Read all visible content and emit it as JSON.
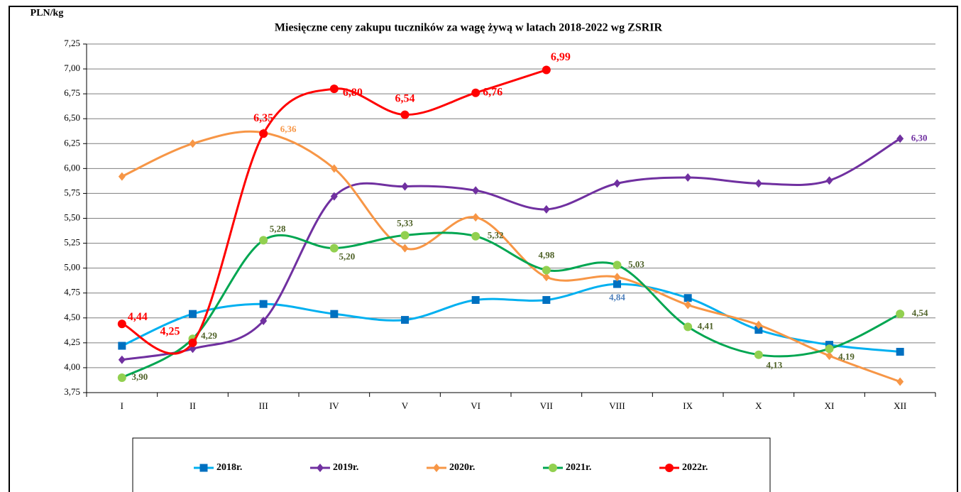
{
  "chart_data": {
    "type": "line",
    "title": "Miesięczne ceny zakupu tuczników za wagę żywą w latach 2018-2022 wg ZSRIR",
    "y_label": "PLN/kg",
    "categories": [
      "I",
      "II",
      "III",
      "IV",
      "V",
      "VI",
      "VII",
      "VIII",
      "IX",
      "X",
      "XI",
      "XII"
    ],
    "ylim": [
      3.75,
      7.25
    ],
    "yticks": [
      {
        "value": 3.75,
        "label": "3,75"
      },
      {
        "value": 4.0,
        "label": "4,00"
      },
      {
        "value": 4.25,
        "label": "4,25"
      },
      {
        "value": 4.5,
        "label": "4,50"
      },
      {
        "value": 4.75,
        "label": "4,75"
      },
      {
        "value": 5.0,
        "label": "5,00"
      },
      {
        "value": 5.25,
        "label": "5,25"
      },
      {
        "value": 5.5,
        "label": "5,50"
      },
      {
        "value": 5.75,
        "label": "5,75"
      },
      {
        "value": 6.0,
        "label": "6,00"
      },
      {
        "value": 6.25,
        "label": "6,25"
      },
      {
        "value": 6.5,
        "label": "6,50"
      },
      {
        "value": 6.75,
        "label": "6,75"
      },
      {
        "value": 7.0,
        "label": "7,00"
      },
      {
        "value": 7.25,
        "label": "7,25"
      }
    ],
    "grid": true,
    "smooth": true,
    "legend": "bottom",
    "series": [
      {
        "name": "2018r.",
        "color": "#00b0f0",
        "marker": "square",
        "marker_color": "#0070c0",
        "label_color": "#4f81bd",
        "values": [
          4.22,
          4.54,
          4.64,
          4.54,
          4.48,
          4.68,
          4.68,
          4.84,
          4.7,
          4.38,
          4.23,
          4.16
        ],
        "value_labels": [
          null,
          null,
          null,
          null,
          null,
          null,
          null,
          "4,84",
          null,
          null,
          null,
          null
        ]
      },
      {
        "name": "2019r.",
        "color": "#7030a0",
        "marker": "diamond",
        "marker_color": "#7030a0",
        "label_color": "#7030a0",
        "values": [
          4.08,
          4.19,
          4.47,
          5.72,
          5.82,
          5.78,
          5.59,
          5.85,
          5.91,
          5.85,
          5.88,
          6.3
        ],
        "value_labels": [
          null,
          null,
          null,
          null,
          null,
          null,
          null,
          null,
          null,
          null,
          null,
          "6,30"
        ]
      },
      {
        "name": "2020r.",
        "color": "#f79646",
        "marker": "diamond",
        "marker_color": "#f79646",
        "label_color": "#f79646",
        "values": [
          5.92,
          6.25,
          6.36,
          6.0,
          5.2,
          5.51,
          4.91,
          4.91,
          4.63,
          4.43,
          4.12,
          3.86
        ],
        "value_labels": [
          null,
          null,
          "6,36",
          null,
          null,
          null,
          null,
          null,
          null,
          null,
          null,
          null
        ]
      },
      {
        "name": "2021r.",
        "color": "#00a651",
        "marker": "circle",
        "marker_color": "#92d050",
        "label_color": "#4f6228",
        "values": [
          3.9,
          4.29,
          5.28,
          5.2,
          5.33,
          5.32,
          4.98,
          5.03,
          4.41,
          4.13,
          4.19,
          4.54
        ],
        "value_labels": [
          "3,90",
          "4,29",
          "5,28",
          "5,20",
          "5,33",
          "5,32",
          "4,98",
          "5,03",
          "4,41",
          "4,13",
          "4,19",
          "4,54"
        ]
      },
      {
        "name": "2022r.",
        "color": "#ff0000",
        "marker": "circle",
        "marker_color": "#ff0000",
        "label_color": "#ff0000",
        "values": [
          4.44,
          4.25,
          6.35,
          6.8,
          6.54,
          6.76,
          6.99,
          null,
          null,
          null,
          null,
          null
        ],
        "value_labels": [
          "4,44",
          "4,25",
          "6,35",
          "6,80",
          "6,54",
          "6,76",
          "6,99",
          null,
          null,
          null,
          null,
          null
        ]
      }
    ]
  }
}
